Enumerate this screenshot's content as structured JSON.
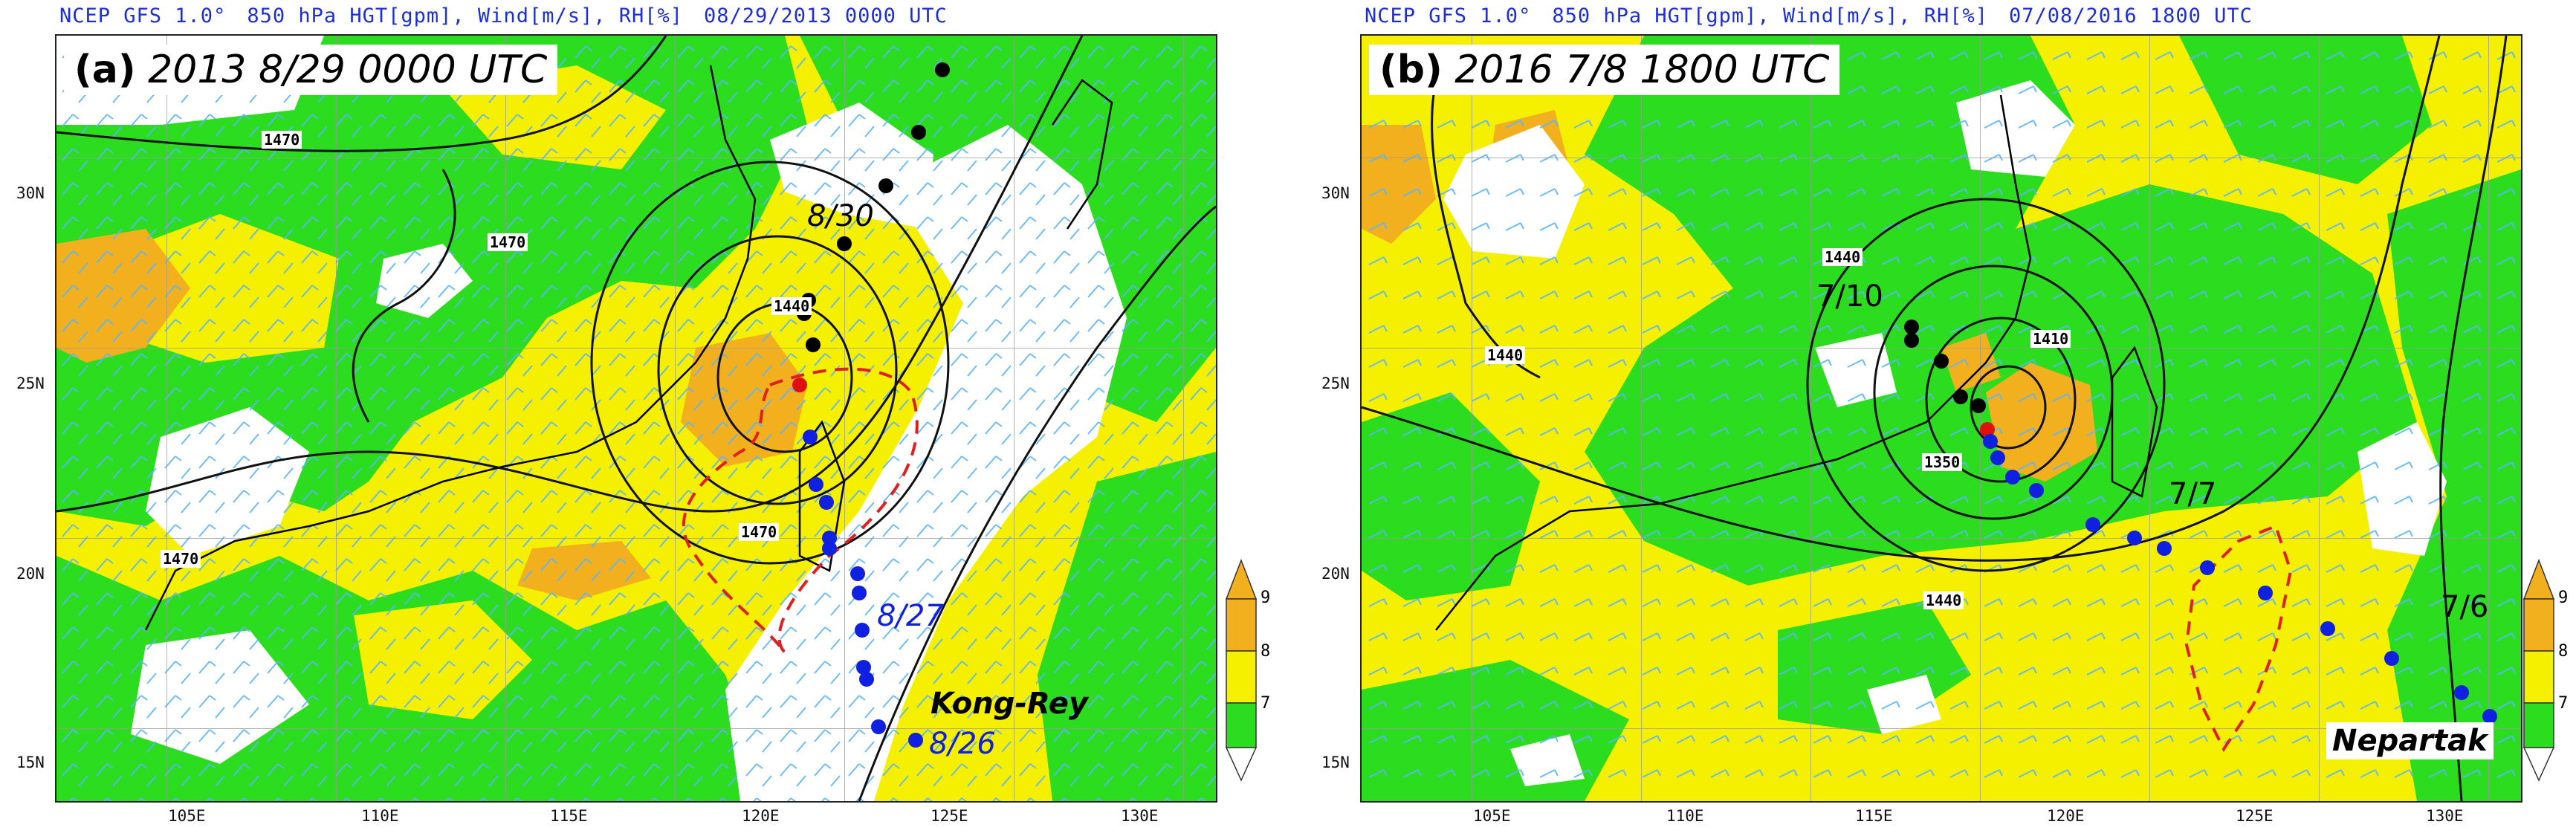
{
  "panels": [
    {
      "header": {
        "source": "NCEP GFS 1.0°",
        "fields": "850 hPa HGT[gpm], Wind[m/s], RH[%]",
        "time": "08/29/2013 0000 UTC"
      },
      "title_tag": "(a)",
      "title_time": "2013 8/29 0000 UTC",
      "lat_labels": [
        "30N",
        "25N",
        "20N",
        "15N"
      ],
      "lon_labels": [
        "105E",
        "110E",
        "115E",
        "120E",
        "125E",
        "130E"
      ],
      "contour_labels": [
        "1470",
        "1470",
        "1440",
        "1470",
        "1470"
      ],
      "track_dates": [
        "8/30",
        "8/27",
        "8/26"
      ],
      "storm_name": "Kong-Rey",
      "colorbar": {
        "ticks": [
          "9",
          "8",
          "7"
        ],
        "colors": [
          "#f2b01e",
          "#f4f000",
          "#2cdc1e",
          "#ffffff"
        ]
      }
    },
    {
      "header": {
        "source": "NCEP GFS 1.0°",
        "fields": "850 hPa HGT[gpm], Wind[m/s], RH[%]",
        "time": "07/08/2016 1800 UTC"
      },
      "title_tag": "(b)",
      "title_time": "2016 7/8 1800 UTC",
      "lat_labels": [
        "30N",
        "25N",
        "20N",
        "15N"
      ],
      "lon_labels": [
        "105E",
        "110E",
        "115E",
        "120E",
        "125E",
        "130E"
      ],
      "contour_labels": [
        "1440",
        "1440",
        "1410",
        "1350",
        "1440"
      ],
      "track_dates": [
        "7/10",
        "7/7",
        "7/6"
      ],
      "storm_name": "Nepartak",
      "colorbar": {
        "ticks": [
          "9",
          "8",
          "7"
        ],
        "colors": [
          "#f2b01e",
          "#f4f000",
          "#2cdc1e",
          "#ffffff"
        ]
      }
    }
  ],
  "colors": {
    "header_text": "#1c2fd6",
    "moist_green": "#2cdc1e",
    "yellow": "#f4f000",
    "orange": "#f2b01e",
    "wind_barb": "#5ab4ff",
    "track_past": "#000000",
    "track_future": "#1020e0",
    "track_current": "#e01010",
    "outline_dashed": "#e02020"
  }
}
